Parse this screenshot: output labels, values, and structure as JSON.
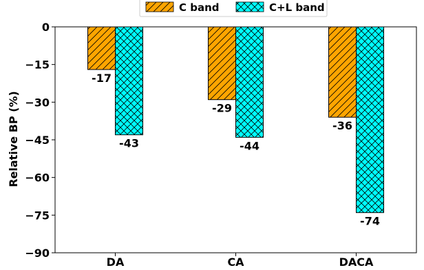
{
  "chart_data": {
    "type": "bar",
    "categories": [
      "DA",
      "CA",
      "DACA"
    ],
    "series": [
      {
        "name": "C band",
        "values": [
          -17,
          -29,
          -36
        ],
        "color": "#FFA500",
        "pattern": "diagonal-hatch"
      },
      {
        "name": "C+L band",
        "values": [
          -43,
          -44,
          -74
        ],
        "color": "#00FFFF",
        "pattern": "cross-hatch"
      }
    ],
    "data_labels": [
      [
        "-17",
        "-29",
        "-36"
      ],
      [
        "-43",
        "-44",
        "-74"
      ]
    ],
    "ylabel": "Relative BP (%)",
    "xlabel": "",
    "ylim": [
      -90,
      0
    ],
    "yticks": [
      0,
      -15,
      -30,
      -45,
      -60,
      -75,
      -90
    ],
    "ytick_labels": [
      "0",
      "−15",
      "−30",
      "−45",
      "−60",
      "−75",
      "−90"
    ],
    "grid": false,
    "legend_position": "top"
  }
}
